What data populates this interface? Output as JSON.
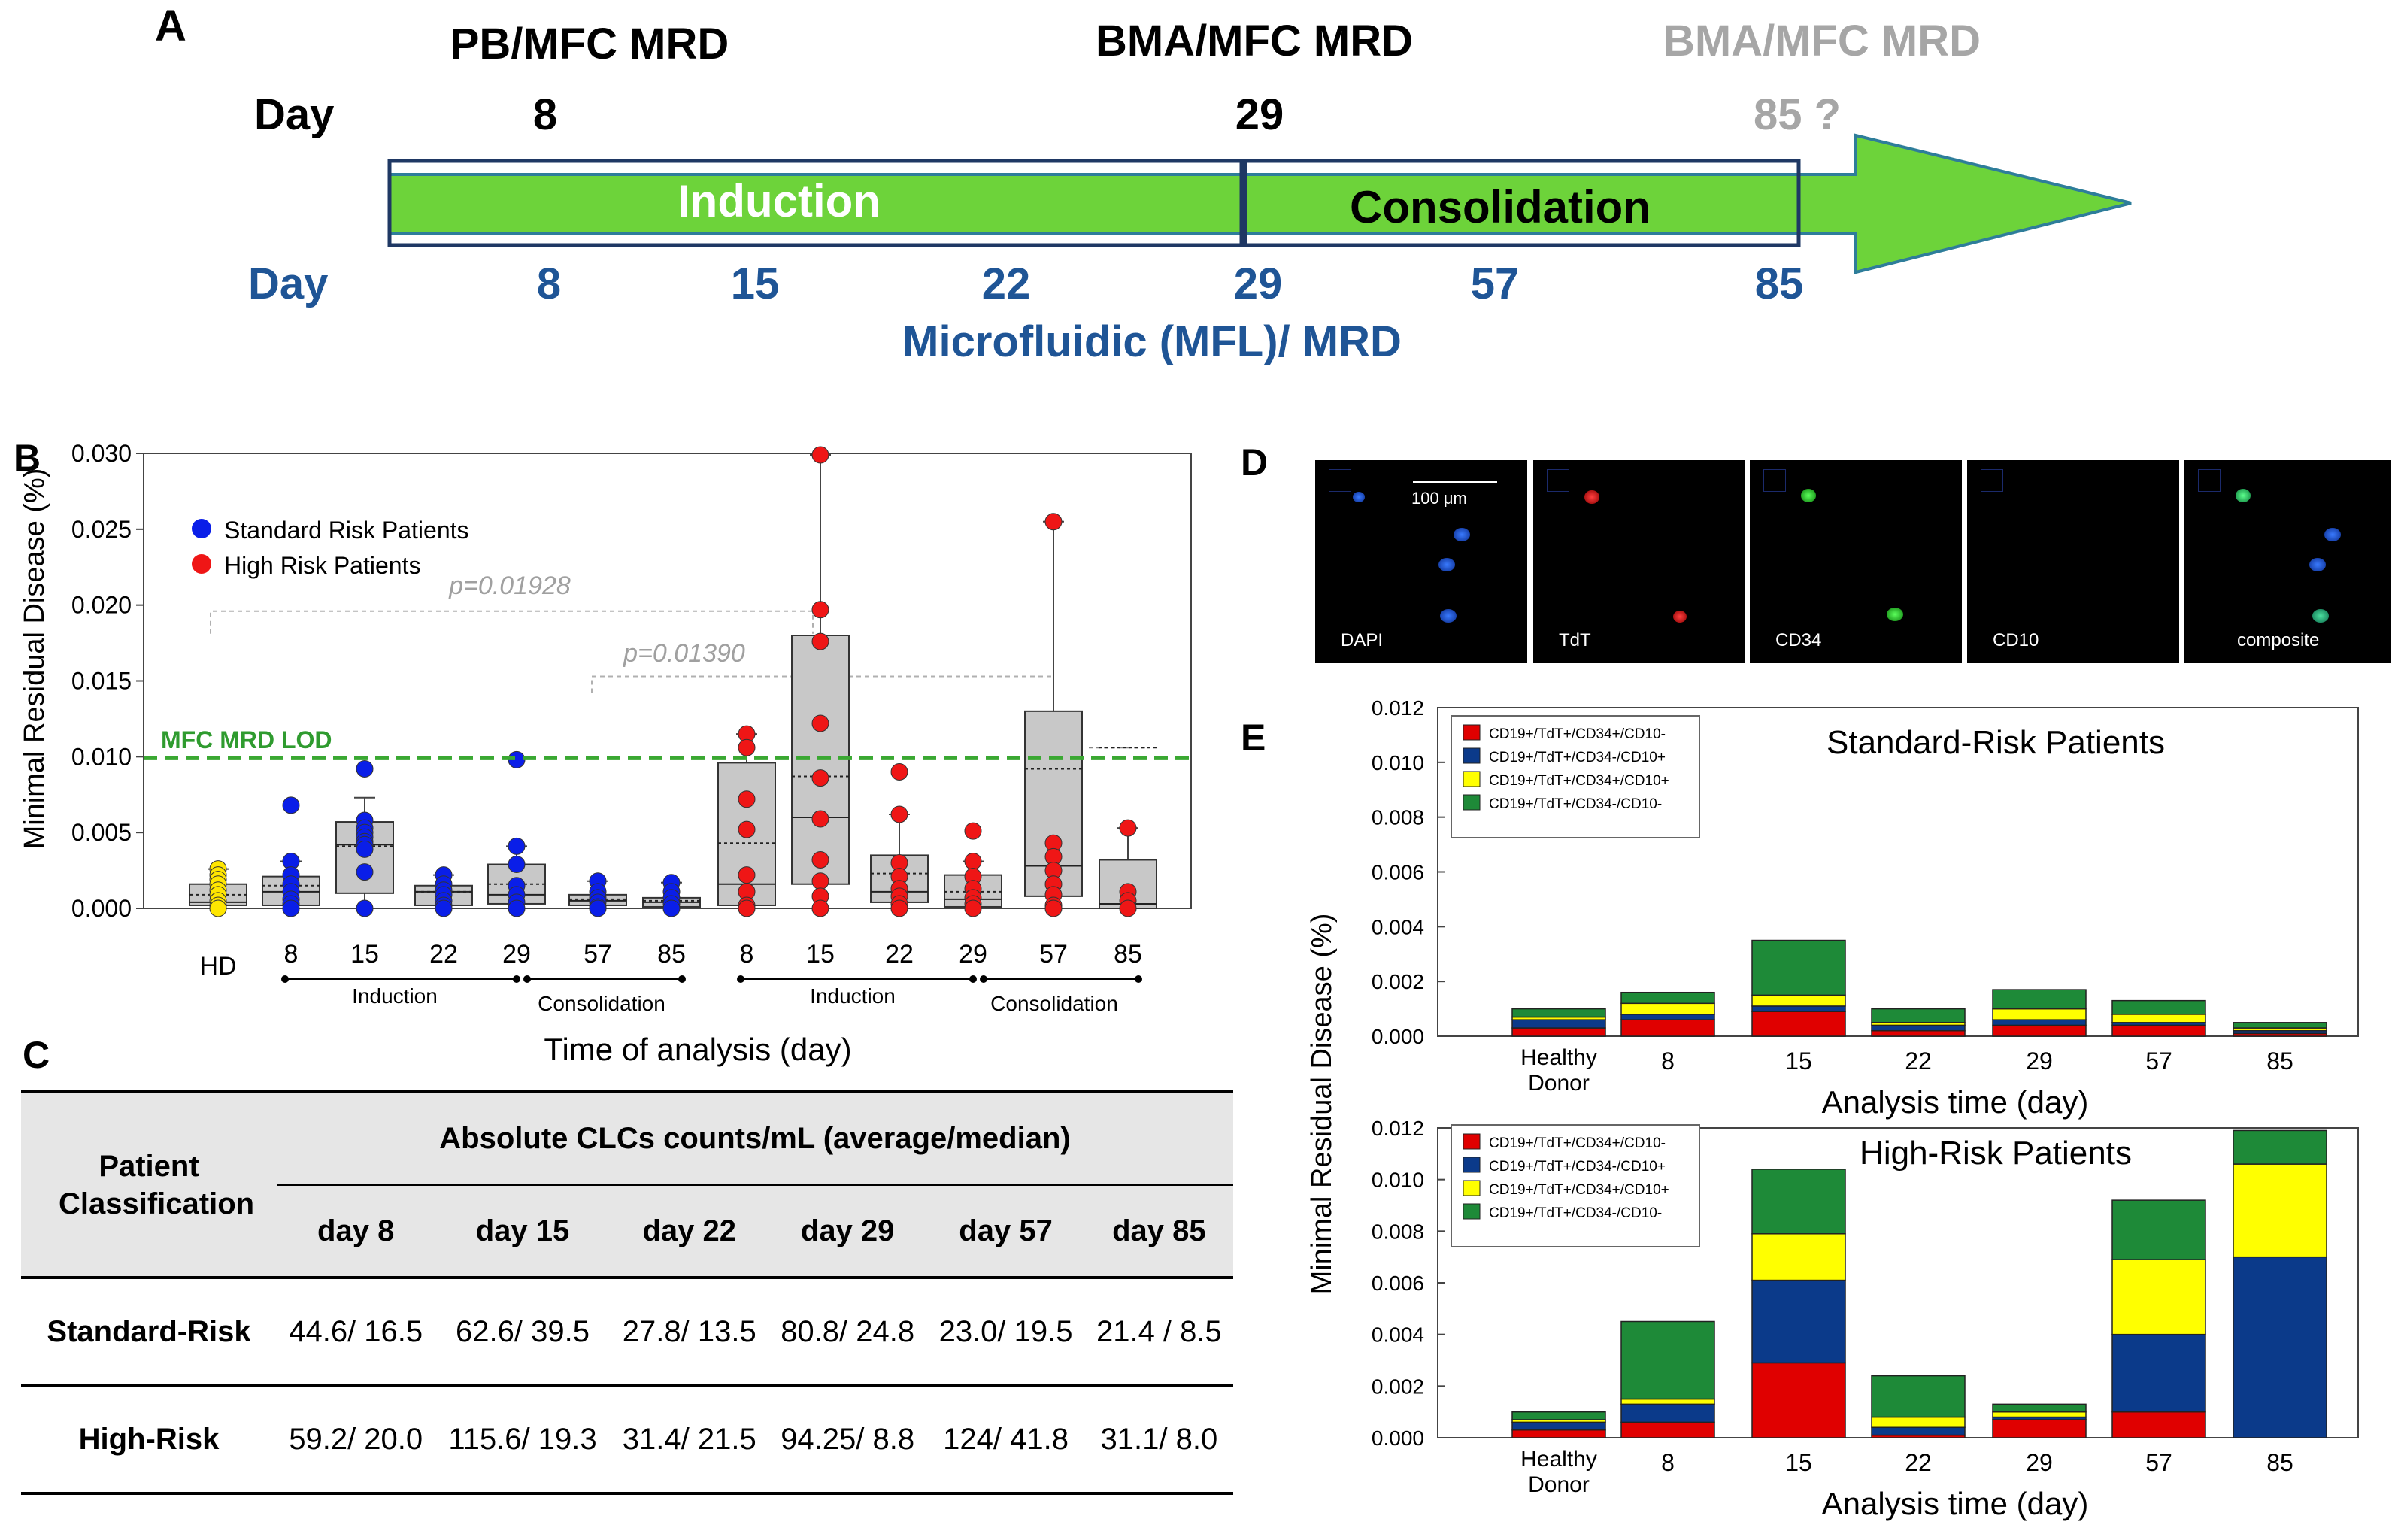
{
  "panel_labels": {
    "a": "A",
    "b": "B",
    "c": "C",
    "d": "D",
    "e": "E"
  },
  "timeline": {
    "mfc_labels": [
      "PB/MFC MRD",
      "BMA/MFC MRD",
      "BMA/MFC MRD"
    ],
    "top_day_label": "Day",
    "top_days": [
      "8",
      "29",
      "85 ?"
    ],
    "phases": [
      "Induction",
      "Consolidation"
    ],
    "bottom_day_label": "Day",
    "bottom_days": [
      "8",
      "15",
      "22",
      "29",
      "57",
      "85"
    ],
    "caption": "Microfluidic (MFL)/ MRD",
    "colors": {
      "arrow": "#6dd33a",
      "frame": "#1f3864",
      "blue_text": "#1f5596",
      "grey_text": "#a6a6a6"
    }
  },
  "chart_b": {
    "type": "box",
    "ylabel": "Minimal Residual Disease (%)",
    "xlabel": "Time of analysis (day)",
    "ylim": [
      0,
      0.03
    ],
    "yticks": [
      "0.000",
      "0.005",
      "0.010",
      "0.015",
      "0.020",
      "0.025",
      "0.030"
    ],
    "legend": [
      "Standard Risk Patients",
      "High Risk Patients"
    ],
    "lod_label": "MFC MRD LOD",
    "lod_value": 0.0099,
    "pvalues": [
      "p=0.01928",
      "p=0.01390"
    ],
    "categories": [
      "HD",
      "8",
      "15",
      "22",
      "29",
      "57",
      "85",
      "8",
      "15",
      "22",
      "29",
      "57",
      "85"
    ],
    "phase_labels": [
      "Induction",
      "Consolidation",
      "Induction",
      "Consolidation"
    ],
    "colors": {
      "hd": "#ffe600",
      "standard": "#0a1ee8",
      "high": "#ef1616",
      "box": "#c8c8c8",
      "lod": "#3aa832"
    },
    "groups": [
      {
        "name": "HD",
        "q1": 0.0002,
        "median": 0.0004,
        "mean": 0.0009,
        "q3": 0.0016,
        "wlo": 0.0,
        "whi": 0.0026,
        "points": [
          0.0026,
          0.0022,
          0.0019,
          0.0016,
          0.0012,
          0.0009,
          0.0005,
          0.0002,
          0.0
        ]
      },
      {
        "name": "SR 8",
        "q1": 0.0002,
        "median": 0.0011,
        "mean": 0.0015,
        "q3": 0.0021,
        "wlo": 0.0,
        "whi": 0.0031,
        "points": [
          0.0068,
          0.0031,
          0.0022,
          0.0016,
          0.0011,
          0.0006,
          0.0003,
          0.0
        ]
      },
      {
        "name": "SR 15",
        "q1": 0.001,
        "median": 0.0042,
        "mean": 0.0041,
        "q3": 0.0057,
        "wlo": 0.0,
        "whi": 0.0073,
        "points": [
          0.0092,
          0.0058,
          0.0053,
          0.005,
          0.0047,
          0.0044,
          0.0042,
          0.0039,
          0.0024,
          0.0
        ]
      },
      {
        "name": "SR 22",
        "q1": 0.0002,
        "median": 0.0011,
        "mean": 0.0011,
        "q3": 0.0015,
        "wlo": 0.0,
        "whi": 0.0022,
        "points": [
          0.0022,
          0.0016,
          0.0012,
          0.0009,
          0.0005,
          0.0002,
          0.0
        ]
      },
      {
        "name": "SR 29",
        "q1": 0.0003,
        "median": 0.0009,
        "mean": 0.0016,
        "q3": 0.0029,
        "wlo": 0.0,
        "whi": 0.0041,
        "points": [
          0.0098,
          0.0041,
          0.0029,
          0.0015,
          0.0009,
          0.0004,
          0.0
        ]
      },
      {
        "name": "SR 57",
        "q1": 0.0002,
        "median": 0.0005,
        "mean": 0.0006,
        "q3": 0.0009,
        "wlo": 0.0,
        "whi": 0.0018,
        "points": [
          0.0018,
          0.0011,
          0.0007,
          0.0004,
          0.0001,
          0.0
        ]
      },
      {
        "name": "SR 85",
        "q1": 0.0001,
        "median": 0.0004,
        "mean": 0.0005,
        "q3": 0.0007,
        "wlo": 0.0,
        "whi": 0.0017,
        "points": [
          0.0017,
          0.0011,
          0.0007,
          0.0003,
          0.0
        ]
      },
      {
        "name": "HR 8",
        "q1": 0.0002,
        "median": 0.0016,
        "mean": 0.0043,
        "q3": 0.0096,
        "wlo": 0.0,
        "whi": 0.0115,
        "points": [
          0.0115,
          0.0106,
          0.0072,
          0.0052,
          0.0022,
          0.0011,
          0.0002,
          0.0
        ]
      },
      {
        "name": "HR 15",
        "q1": 0.0016,
        "median": 0.006,
        "mean": 0.0087,
        "q3": 0.018,
        "wlo": 0.0,
        "whi": 0.0299,
        "points": [
          0.0299,
          0.0197,
          0.0176,
          0.0122,
          0.0086,
          0.0059,
          0.0032,
          0.0018,
          0.0008,
          0.0
        ]
      },
      {
        "name": "HR 22",
        "q1": 0.0004,
        "median": 0.0011,
        "mean": 0.0023,
        "q3": 0.0035,
        "wlo": 0.0,
        "whi": 0.0062,
        "points": [
          0.009,
          0.0062,
          0.003,
          0.0021,
          0.0013,
          0.0008,
          0.0003,
          0.0
        ]
      },
      {
        "name": "HR 29",
        "q1": 0.0001,
        "median": 0.0006,
        "mean": 0.0011,
        "q3": 0.0022,
        "wlo": 0.0,
        "whi": 0.0031,
        "points": [
          0.0051,
          0.0031,
          0.0021,
          0.0013,
          0.0007,
          0.0003,
          0.0
        ]
      },
      {
        "name": "HR 57",
        "q1": 0.0008,
        "median": 0.0028,
        "mean": 0.0092,
        "q3": 0.013,
        "wlo": 0.0,
        "whi": 0.0255,
        "points": [
          0.0255,
          0.0043,
          0.0034,
          0.0025,
          0.0016,
          0.0009,
          0.0002,
          0.0
        ]
      },
      {
        "name": "HR 85",
        "q1": 0.0,
        "median": 0.0003,
        "mean": 0.0106,
        "q3": 0.0032,
        "wlo": 0.0,
        "whi": 0.0053,
        "points": [
          0.0053,
          0.0011,
          0.0005,
          0.0
        ]
      }
    ]
  },
  "table_c": {
    "row_header": "Patient Classification",
    "group_header": "Absolute CLCs counts/mL (average/median)",
    "columns": [
      "day 8",
      "day 15",
      "day 22",
      "day 29",
      "day 57",
      "day 85"
    ],
    "rows": [
      {
        "label": "Standard-Risk",
        "values": [
          "44.6/ 16.5",
          "62.6/ 39.5",
          "27.8/ 13.5",
          "80.8/ 24.8",
          "23.0/ 19.5",
          "21.4 / 8.5"
        ]
      },
      {
        "label": "High-Risk",
        "values": [
          "59.2/ 20.0",
          "115.6/ 19.3",
          "31.4/ 21.5",
          "94.25/ 8.8",
          "124/ 41.8",
          "31.1/ 8.0"
        ]
      }
    ]
  },
  "panel_d": {
    "scale_bar": "100 μm",
    "channels": [
      "DAPI",
      "TdT",
      "CD34",
      "CD10",
      "composite"
    ]
  },
  "chart_e": {
    "type": "stacked-bar",
    "ylabel": "Minimal Residual Disease (%)",
    "xlabel": "Analysis time (day)",
    "categories": [
      "Healthy Donor",
      "8",
      "15",
      "22",
      "29",
      "57",
      "85"
    ],
    "legend": [
      "CD19+/TdT+/CD34+/CD10-",
      "CD19+/TdT+/CD34-/CD10+",
      "CD19+/TdT+/CD34+/CD10+",
      "CD19+/TdT+/CD34-/CD10-"
    ],
    "colors": [
      "#e00000",
      "#0b3a8a",
      "#ffff00",
      "#1e8a38"
    ],
    "panels": [
      {
        "title": "Standard-Risk Patients",
        "ylim": [
          0,
          0.012
        ],
        "yticks": [
          "0.000",
          "0.002",
          "0.004",
          "0.006",
          "0.008",
          "0.010",
          "0.012"
        ],
        "series": [
          {
            "name": "CD19+/TdT+/CD34+/CD10-",
            "values": [
              0.0003,
              0.0006,
              0.0009,
              0.0002,
              0.0004,
              0.0004,
              0.0001
            ]
          },
          {
            "name": "CD19+/TdT+/CD34-/CD10+",
            "values": [
              0.0003,
              0.0002,
              0.0002,
              0.0002,
              0.0002,
              0.0001,
              0.0001
            ]
          },
          {
            "name": "CD19+/TdT+/CD34+/CD10+",
            "values": [
              0.0001,
              0.0004,
              0.0004,
              0.0001,
              0.0004,
              0.0003,
              0.0001
            ]
          },
          {
            "name": "CD19+/TdT+/CD34-/CD10-",
            "values": [
              0.0003,
              0.0004,
              0.002,
              0.0005,
              0.0007,
              0.0005,
              0.0002
            ]
          }
        ]
      },
      {
        "title": "High-Risk Patients",
        "ylim": [
          0,
          0.012
        ],
        "yticks": [
          "0.000",
          "0.002",
          "0.004",
          "0.006",
          "0.008",
          "0.010",
          "0.012"
        ],
        "series": [
          {
            "name": "CD19+/TdT+/CD34+/CD10-",
            "values": [
              0.0003,
              0.0006,
              0.0029,
              0.0001,
              0.0007,
              0.001,
              0.0
            ]
          },
          {
            "name": "CD19+/TdT+/CD34-/CD10+",
            "values": [
              0.0003,
              0.0007,
              0.0032,
              0.0003,
              0.0001,
              0.003,
              0.007
            ]
          },
          {
            "name": "CD19+/TdT+/CD34+/CD10+",
            "values": [
              0.0001,
              0.0002,
              0.0018,
              0.0004,
              0.0002,
              0.0029,
              0.0036
            ]
          },
          {
            "name": "CD19+/TdT+/CD34-/CD10-",
            "values": [
              0.0003,
              0.003,
              0.0025,
              0.0016,
              0.0003,
              0.0023,
              0.0013
            ]
          }
        ]
      }
    ]
  }
}
